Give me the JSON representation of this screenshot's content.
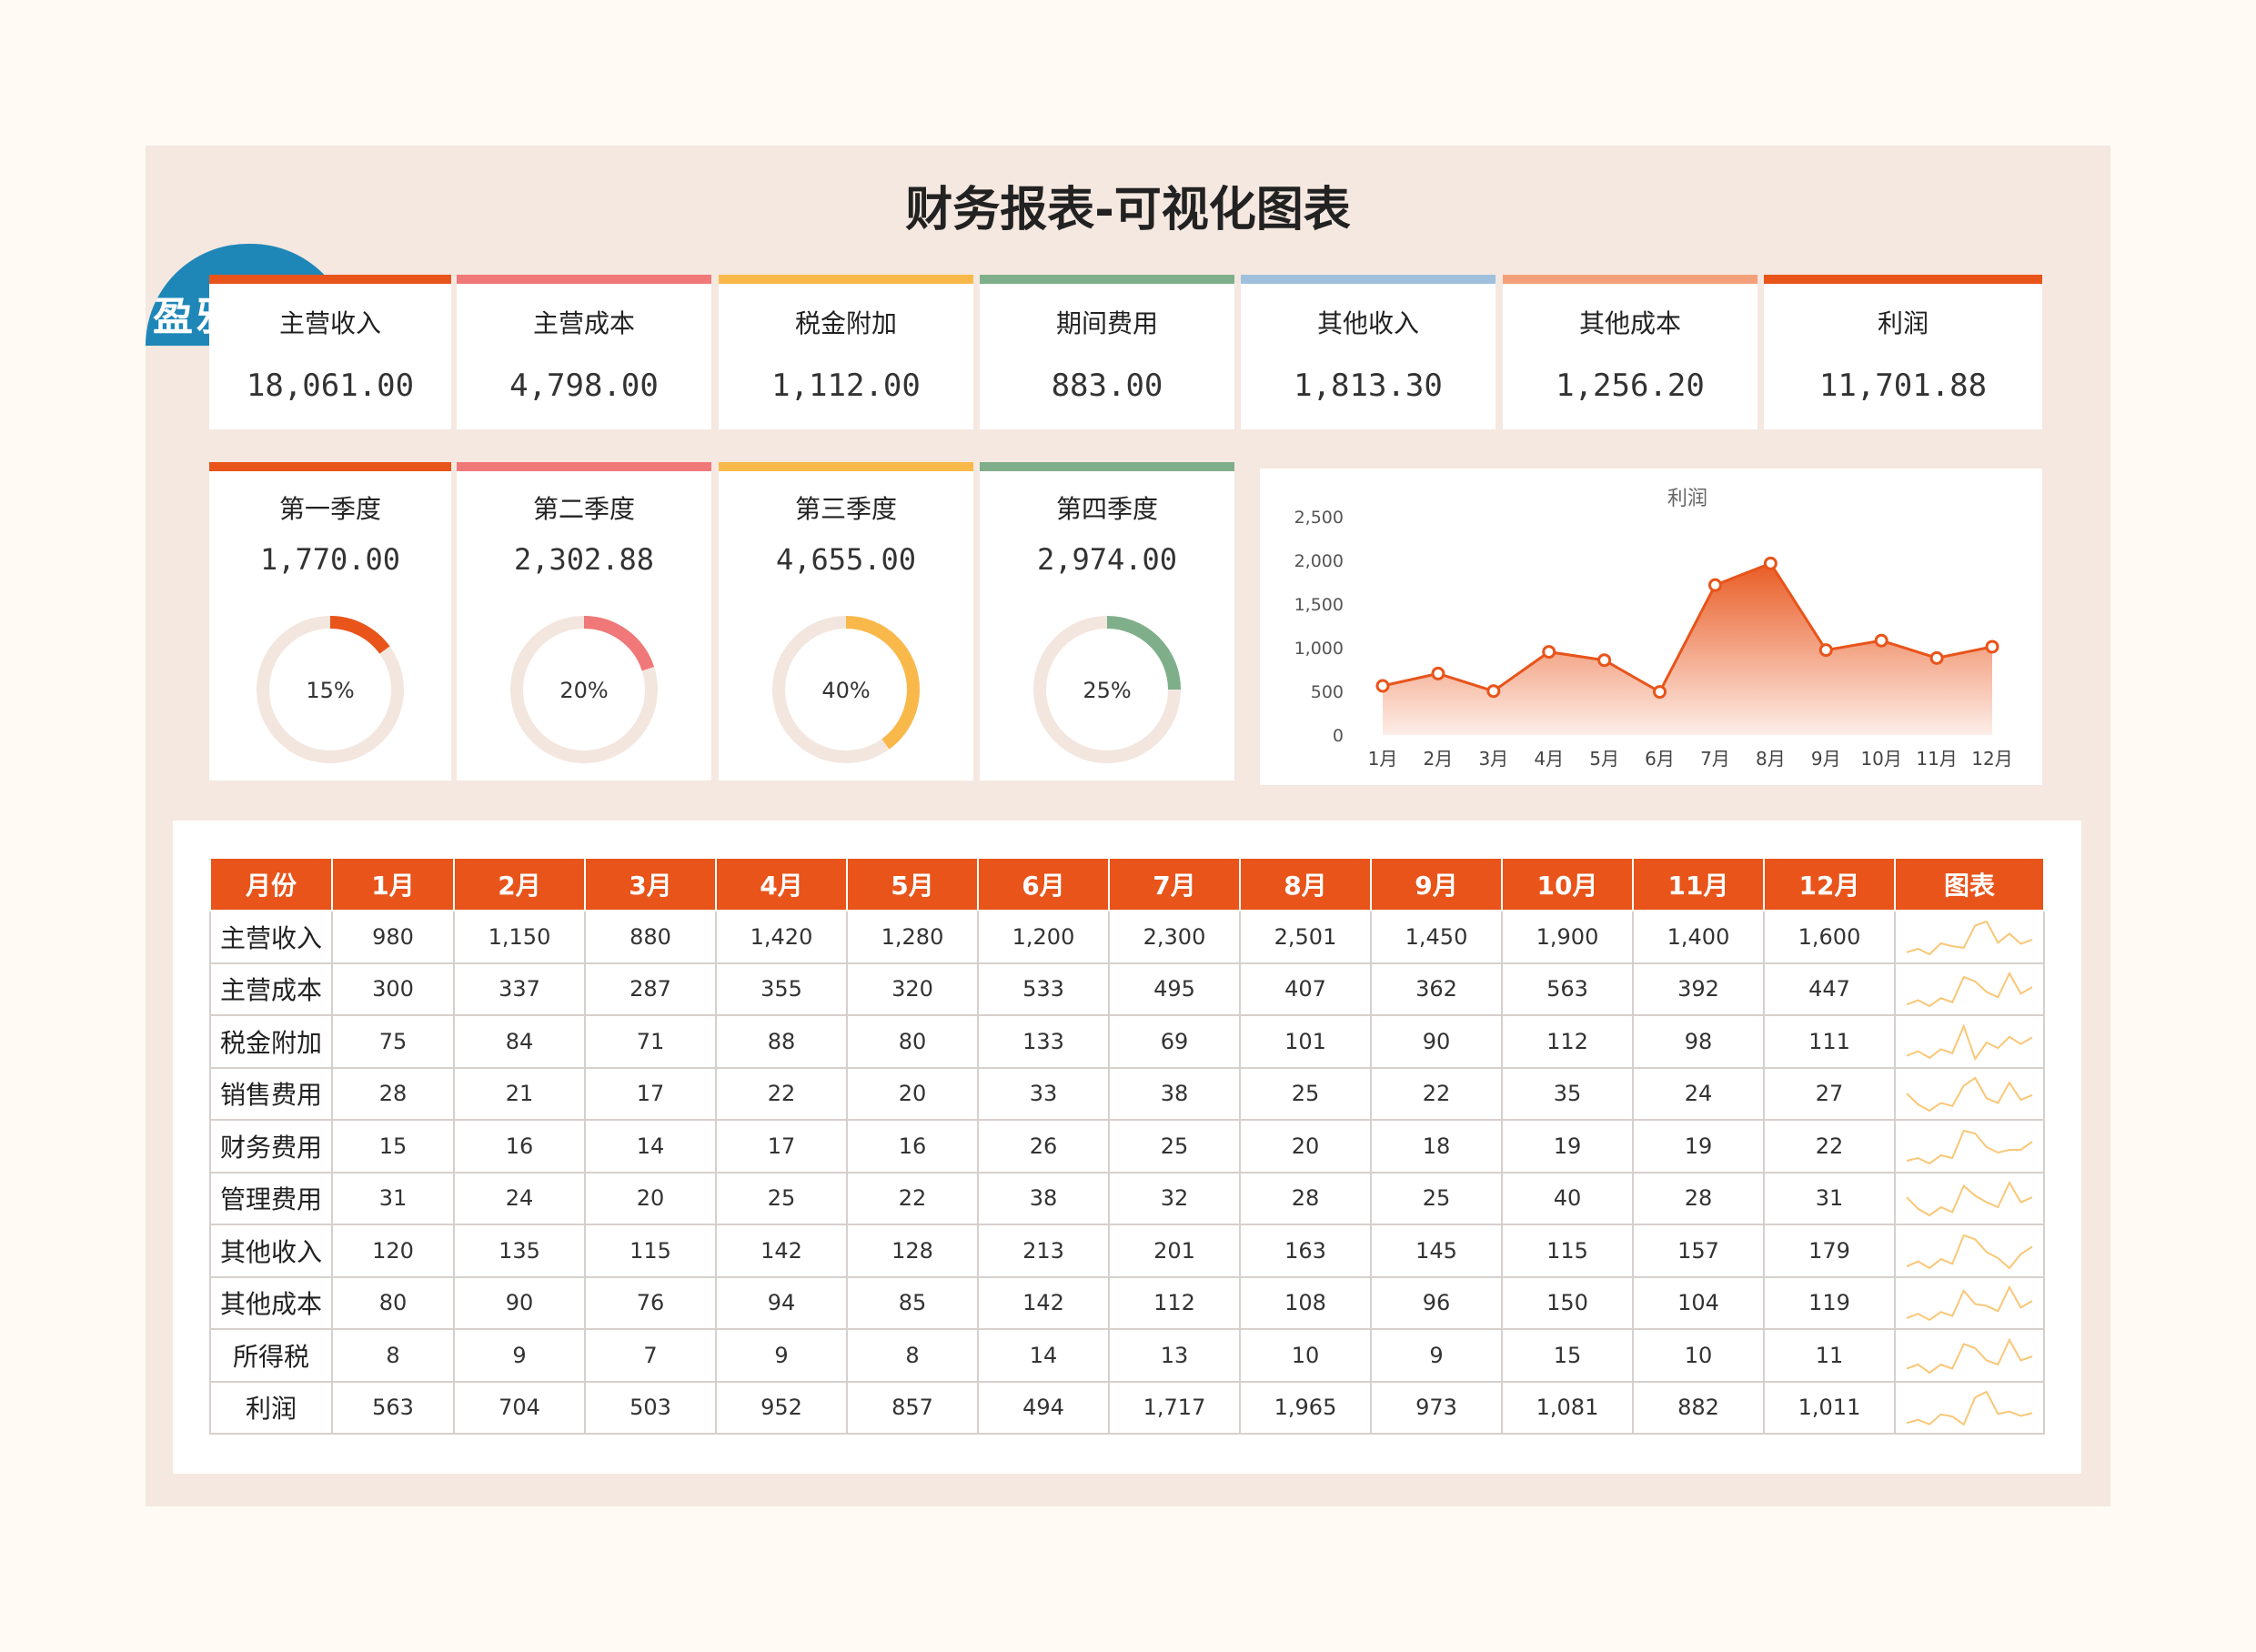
{
  "title": "财务报表-可视化图表",
  "logo_text": "盈雅素材",
  "kpis": [
    {
      "label": "主营收入",
      "value": "18,061.00",
      "color": "#e8541a"
    },
    {
      "label": "主营成本",
      "value": "4,798.00",
      "color": "#f07878"
    },
    {
      "label": "税金附加",
      "value": "1,112.00",
      "color": "#f9b94a"
    },
    {
      "label": "期间费用",
      "value": "883.00",
      "color": "#7faf8a"
    },
    {
      "label": "其他收入",
      "value": "1,813.30",
      "color": "#9fc0dc"
    },
    {
      "label": "其他成本",
      "value": "1,256.20",
      "color": "#f3a07a"
    },
    {
      "label": "利润",
      "value": "11,701.88",
      "color": "#e8541a"
    }
  ],
  "quarters": [
    {
      "label": "第一季度",
      "value": "1,770.00",
      "percent": 15,
      "percent_label": "15%",
      "color": "#e8541a"
    },
    {
      "label": "第二季度",
      "value": "2,302.88",
      "percent": 20,
      "percent_label": "20%",
      "color": "#f07878"
    },
    {
      "label": "第三季度",
      "value": "4,655.00",
      "percent": 40,
      "percent_label": "40%",
      "color": "#f9b94a"
    },
    {
      "label": "第四季度",
      "value": "2,974.00",
      "percent": 25,
      "percent_label": "25%",
      "color": "#7faf8a"
    }
  ],
  "chart_data": {
    "type": "area",
    "title": "利润",
    "categories": [
      "1月",
      "2月",
      "3月",
      "4月",
      "5月",
      "6月",
      "7月",
      "8月",
      "9月",
      "10月",
      "11月",
      "12月"
    ],
    "values": [
      563,
      704,
      503,
      952,
      857,
      494,
      1717,
      1965,
      973,
      1081,
      882,
      1011
    ],
    "ylim": [
      0,
      2500
    ],
    "yticks": [
      "2,500",
      "2,000",
      "1,500",
      "1,000",
      "500",
      "0"
    ],
    "ytick_values": [
      2500,
      2000,
      1500,
      1000,
      500,
      0
    ],
    "color": "#e8541a",
    "grid": false
  },
  "table": {
    "headers": [
      "月份",
      "1月",
      "2月",
      "3月",
      "4月",
      "5月",
      "6月",
      "7月",
      "8月",
      "9月",
      "10月",
      "11月",
      "12月",
      "图表"
    ],
    "rows": [
      {
        "label": "主营收入",
        "values": [
          980,
          1150,
          880,
          1420,
          1280,
          1200,
          2300,
          2501,
          1450,
          1900,
          1400,
          1600
        ],
        "display": [
          "980",
          "1,150",
          "880",
          "1,420",
          "1,280",
          "1,200",
          "2,300",
          "2,501",
          "1,450",
          "1,900",
          "1,400",
          "1,600"
        ]
      },
      {
        "label": "主营成本",
        "values": [
          300,
          337,
          287,
          355,
          320,
          533,
          495,
          407,
          362,
          563,
          392,
          447
        ],
        "display": [
          "300",
          "337",
          "287",
          "355",
          "320",
          "533",
          "495",
          "407",
          "362",
          "563",
          "392",
          "447"
        ]
      },
      {
        "label": "税金附加",
        "values": [
          75,
          84,
          71,
          88,
          80,
          133,
          69,
          101,
          90,
          112,
          98,
          111
        ],
        "display": [
          "75",
          "84",
          "71",
          "88",
          "80",
          "133",
          "69",
          "101",
          "90",
          "112",
          "98",
          "111"
        ]
      },
      {
        "label": "销售费用",
        "values": [
          28,
          21,
          17,
          22,
          20,
          33,
          38,
          25,
          22,
          35,
          24,
          27
        ],
        "display": [
          "28",
          "21",
          "17",
          "22",
          "20",
          "33",
          "38",
          "25",
          "22",
          "35",
          "24",
          "27"
        ]
      },
      {
        "label": "财务费用",
        "values": [
          15,
          16,
          14,
          17,
          16,
          26,
          25,
          20,
          18,
          19,
          19,
          22
        ],
        "display": [
          "15",
          "16",
          "14",
          "17",
          "16",
          "26",
          "25",
          "20",
          "18",
          "19",
          "19",
          "22"
        ]
      },
      {
        "label": "管理费用",
        "values": [
          31,
          24,
          20,
          25,
          22,
          38,
          32,
          28,
          25,
          40,
          28,
          31
        ],
        "display": [
          "31",
          "24",
          "20",
          "25",
          "22",
          "38",
          "32",
          "28",
          "25",
          "40",
          "28",
          "31"
        ]
      },
      {
        "label": "其他收入",
        "values": [
          120,
          135,
          115,
          142,
          128,
          213,
          201,
          163,
          145,
          115,
          157,
          179
        ],
        "display": [
          "120",
          "135",
          "115",
          "142",
          "128",
          "213",
          "201",
          "163",
          "145",
          "115",
          "157",
          "179"
        ]
      },
      {
        "label": "其他成本",
        "values": [
          80,
          90,
          76,
          94,
          85,
          142,
          112,
          108,
          96,
          150,
          104,
          119
        ],
        "display": [
          "80",
          "90",
          "76",
          "94",
          "85",
          "142",
          "112",
          "108",
          "96",
          "150",
          "104",
          "119"
        ]
      },
      {
        "label": "所得税",
        "values": [
          8,
          9,
          7,
          9,
          8,
          14,
          13,
          10,
          9,
          15,
          10,
          11
        ],
        "display": [
          "8",
          "9",
          "7",
          "9",
          "8",
          "14",
          "13",
          "10",
          "9",
          "15",
          "10",
          "11"
        ]
      },
      {
        "label": "利润",
        "values": [
          563,
          704,
          503,
          952,
          857,
          494,
          1717,
          1965,
          973,
          1081,
          882,
          1011
        ],
        "display": [
          "563",
          "704",
          "503",
          "952",
          "857",
          "494",
          "1,717",
          "1,965",
          "973",
          "1,081",
          "882",
          "1,011"
        ]
      }
    ],
    "sparkline_color": "#f9c777"
  }
}
